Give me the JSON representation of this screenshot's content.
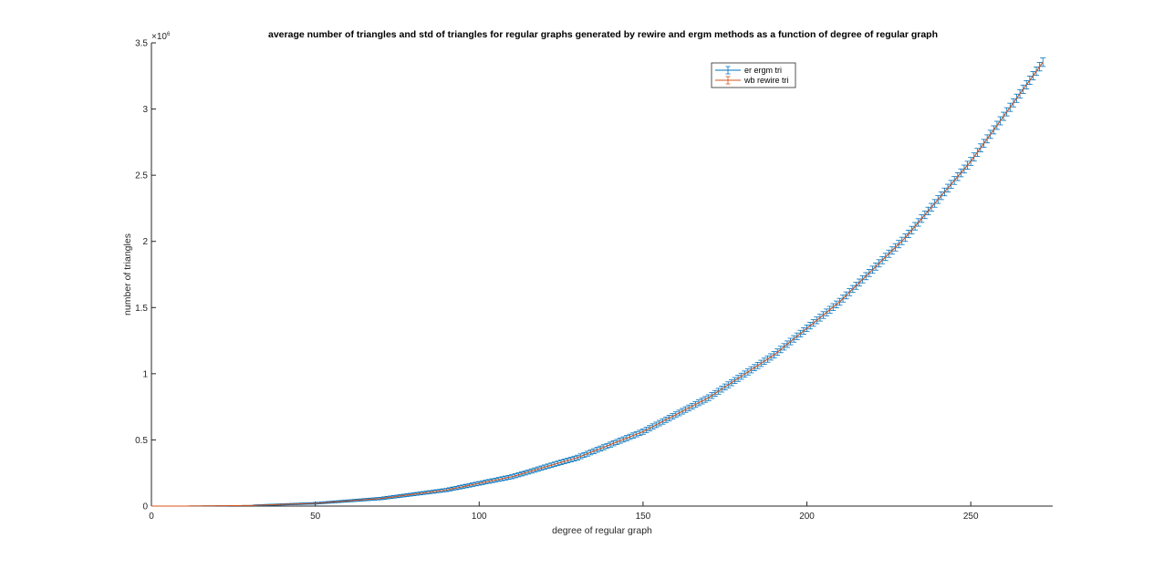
{
  "chart_data": {
    "type": "line",
    "title": "average number of triangles and std of triangles for regular graphs generated by rewire and ergm methods as a function of degree of regular graph",
    "xlabel": "degree of regular graph",
    "ylabel": "number of triangles",
    "xlim": [
      0,
      275
    ],
    "ylim": [
      0,
      3500000
    ],
    "xticks": [
      0,
      50,
      100,
      150,
      200,
      250
    ],
    "xtick_labels": [
      "0",
      "50",
      "100",
      "150",
      "200",
      "250"
    ],
    "yticks": [
      0,
      500000,
      1000000,
      1500000,
      2000000,
      2500000,
      3000000,
      3500000
    ],
    "ytick_labels": [
      "0",
      "0.5",
      "1",
      "1.5",
      "2",
      "2.5",
      "3",
      "3.5"
    ],
    "y_exponent_label": "×10",
    "y_exponent_power": "6",
    "grid": false,
    "legend_position": "top-right",
    "series": [
      {
        "name": "er ergm tri",
        "color": "#0072BD",
        "errorbars": true,
        "x": [
          10,
          30,
          50,
          70,
          90,
          110,
          130,
          150,
          170,
          190,
          210,
          230,
          250,
          272
        ],
        "y": [
          170,
          4500,
          20800,
          57200,
          121500,
          221800,
          366200,
          562500,
          818800,
          1143200,
          1543500,
          2027800,
          2604200,
          3353800
        ],
        "std": [
          800,
          3000,
          6000,
          9000,
          12000,
          15000,
          18000,
          20000,
          22000,
          24000,
          26000,
          28000,
          30000,
          32000
        ]
      },
      {
        "name": "wb rewire tri",
        "color": "#D95319",
        "errorbars": false,
        "x": [
          0,
          10,
          30,
          50,
          70,
          90,
          110,
          130,
          150,
          170,
          190,
          210,
          230,
          250,
          272
        ],
        "y": [
          0,
          170,
          4500,
          20800,
          57200,
          121500,
          221800,
          366200,
          562500,
          818800,
          1143200,
          1543500,
          2027800,
          2604200,
          3353800
        ]
      }
    ]
  }
}
